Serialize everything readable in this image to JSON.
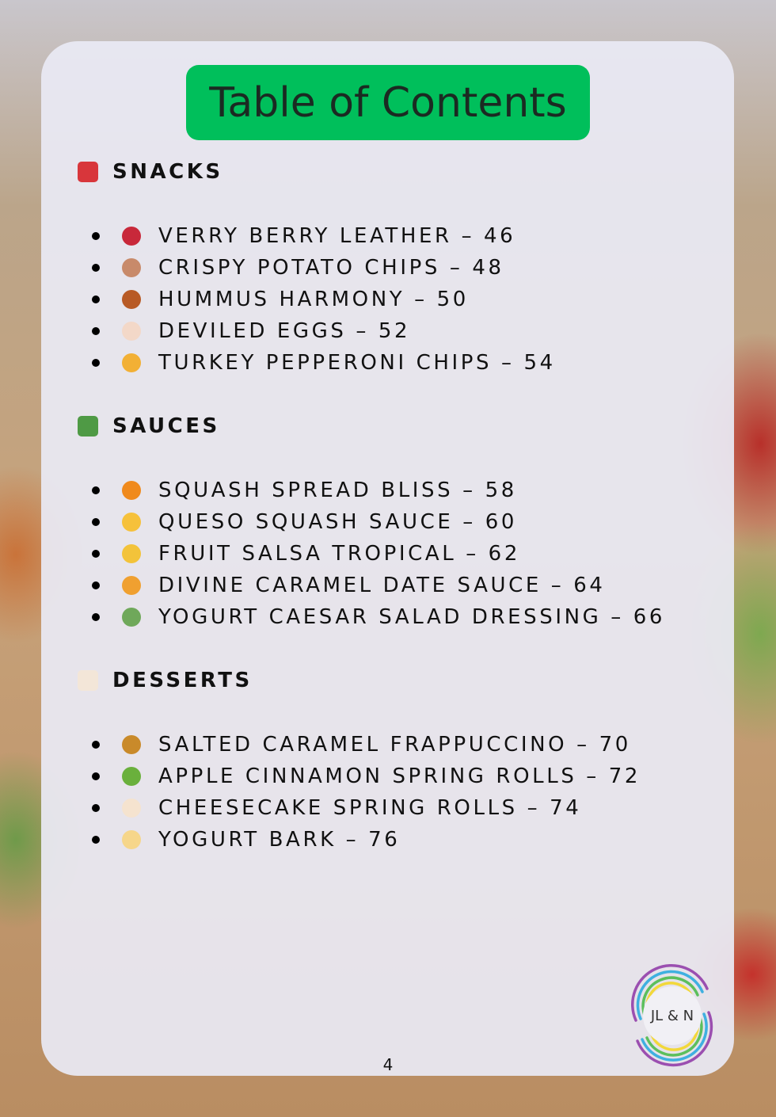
{
  "title": "Table of Contents",
  "sections": [
    {
      "label": "SNACKS",
      "icon": "popcorn-icon",
      "color": "#d8363b",
      "items": [
        {
          "text": "VERRY BERRY LEATHER – 46",
          "icon": "strawberry-icon",
          "color": "#c8283a"
        },
        {
          "text": "CRISPY POTATO CHIPS – 48",
          "icon": "potato-icon",
          "color": "#c88a6a"
        },
        {
          "text": "HUMMUS HARMONY – 50",
          "icon": "falafel-icon",
          "color": "#b85a25"
        },
        {
          "text": "DEVILED EGGS – 52",
          "icon": "egg-icon",
          "color": "#f3d8c8"
        },
        {
          "text": "TURKEY PEPPERONI CHIPS – 54",
          "icon": "pizza-icon",
          "color": "#f2b035"
        }
      ]
    },
    {
      "label": "SAUCES",
      "icon": "canned-food-icon",
      "color": "#4f9a45",
      "items": [
        {
          "text": "SQUASH SPREAD BLISS – 58",
          "icon": "jack-o-lantern-icon",
          "color": "#f08a1c"
        },
        {
          "text": "QUESO SQUASH SAUCE – 60",
          "icon": "cheese-icon",
          "color": "#f6c13b"
        },
        {
          "text": "FRUIT SALSA TROPICAL – 62",
          "icon": "pineapple-icon",
          "color": "#f3c33a"
        },
        {
          "text": "DIVINE CARAMEL DATE SAUCE – 64",
          "icon": "cupcake-icon",
          "color": "#f0a030"
        },
        {
          "text": "YOGURT CAESAR SALAD DRESSING – 66",
          "icon": "salad-icon",
          "color": "#6fa85a"
        }
      ]
    },
    {
      "label": "DESSERTS",
      "icon": "shortcake-icon",
      "color": "#f3e6d8",
      "items": [
        {
          "text": "SALTED CARAMEL FRAPPUCCINO – 70",
          "icon": "custard-icon",
          "color": "#c98a2a"
        },
        {
          "text": "APPLE CINNAMON SPRING ROLLS – 72",
          "icon": "green-apple-icon",
          "color": "#6ab03c"
        },
        {
          "text": "CHEESECAKE SPRING ROLLS – 74",
          "icon": "shortcake-icon",
          "color": "#f5e3cf"
        },
        {
          "text": "YOGURT BARK – 76",
          "icon": "soft-ice-cream-icon",
          "color": "#f6d68a"
        }
      ]
    }
  ],
  "page_number": "4",
  "logo": {
    "text": "JL & N",
    "icon": "rainbow-swirl-logo"
  }
}
